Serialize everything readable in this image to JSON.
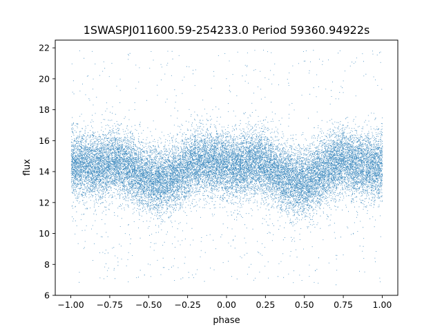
{
  "chart_data": {
    "type": "scatter",
    "title": "1SWASPJ011600.59-254233.0 Period 59360.94922s",
    "xlabel": "phase",
    "ylabel": "flux",
    "xlim": [
      -1.1,
      1.1
    ],
    "ylim": [
      6.0,
      22.5
    ],
    "xticks": [
      -1.0,
      -0.75,
      -0.5,
      -0.25,
      0.0,
      0.25,
      0.5,
      0.75,
      1.0
    ],
    "xtick_labels": [
      "−1.00",
      "−0.75",
      "−0.50",
      "−0.25",
      "0.00",
      "0.25",
      "0.50",
      "0.75",
      "1.00"
    ],
    "yticks": [
      6,
      8,
      10,
      12,
      14,
      16,
      18,
      20,
      22
    ],
    "ytick_labels": [
      "6",
      "8",
      "10",
      "12",
      "14",
      "16",
      "18",
      "20",
      "22"
    ],
    "grid": false,
    "legend": "none",
    "series": [
      {
        "color": "#1f77b4",
        "marker": "point",
        "phase_range": [
          -1.0,
          1.0
        ],
        "y_range": [
          6.7,
          21.9
        ],
        "approx_point_count": 60000,
        "phase": [
          -1.0,
          -0.95,
          -0.9,
          -0.85,
          -0.8,
          -0.75,
          -0.7,
          -0.65,
          -0.6,
          -0.55,
          -0.5,
          -0.45,
          -0.4,
          -0.35,
          -0.3,
          -0.25,
          -0.2,
          -0.15,
          -0.1,
          -0.05,
          0.0,
          0.05,
          0.1,
          0.15,
          0.2,
          0.25,
          0.3,
          0.35,
          0.4,
          0.45,
          0.5,
          0.55,
          0.6,
          0.65,
          0.7,
          0.75,
          0.8,
          0.85,
          0.9,
          0.95,
          1.0
        ],
        "flux_center": [
          14.6,
          14.5,
          14.4,
          14.3,
          14.4,
          14.6,
          14.6,
          14.4,
          14.1,
          13.7,
          13.5,
          13.3,
          13.4,
          13.6,
          13.9,
          14.3,
          14.6,
          14.7,
          14.6,
          14.5,
          14.4,
          14.3,
          14.4,
          14.6,
          14.6,
          14.4,
          14.1,
          13.7,
          13.5,
          13.3,
          13.4,
          13.6,
          13.9,
          14.3,
          14.6,
          14.7,
          14.6,
          14.5,
          14.4,
          14.3,
          14.6
        ]
      }
    ]
  }
}
